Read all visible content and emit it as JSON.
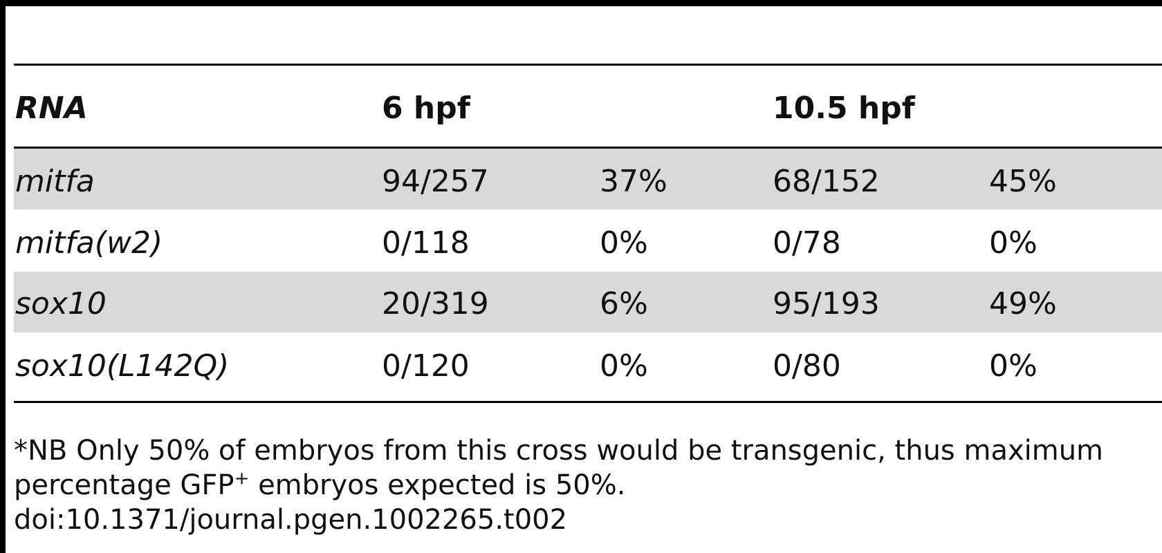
{
  "table": {
    "headers": {
      "rna": "RNA",
      "hpf6": "6 hpf",
      "hpf10": "10.5 hpf"
    },
    "rows": [
      {
        "rna": "mitfa",
        "n6": "94/257",
        "p6": "37%",
        "n10": "68/152",
        "p10": "45%"
      },
      {
        "rna": "mitfa(w2)",
        "n6": "0/118",
        "p6": "0%",
        "n10": "0/78",
        "p10": "0%"
      },
      {
        "rna": "sox10",
        "n6": "20/319",
        "p6": "6%",
        "n10": "95/193",
        "p10": "49%"
      },
      {
        "rna": "sox10(L142Q)",
        "n6": "0/120",
        "p6": "0%",
        "n10": "0/80",
        "p10": "0%"
      }
    ],
    "row_shading": [
      "#d9d9d9",
      "#ffffff",
      "#d9d9d9",
      "#ffffff"
    ]
  },
  "footnote": {
    "line1": "*NB Only 50% of embryos from this cross would be transgenic, thus maximum",
    "line2_pre": "percentage GFP",
    "line2_sup": "+",
    "line2_post": " embryos expected is 50%.",
    "doi": "doi:10.1371/journal.pgen.1002265.t002"
  }
}
